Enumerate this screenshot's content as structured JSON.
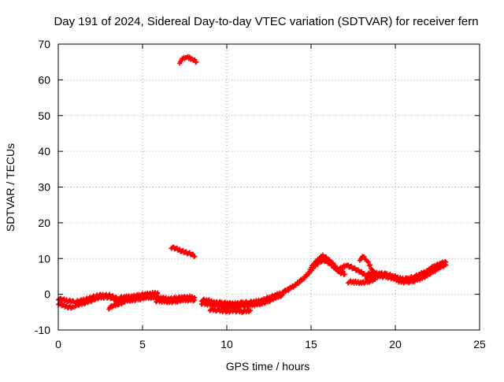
{
  "chart_data": {
    "type": "scatter",
    "title": "Day 191 of 2024, Sidereal Day-to-day VTEC variation (SDTVAR) for receiver fern",
    "xlabel": "GPS time / hours",
    "ylabel": "SDTVAR / TECUs",
    "xlim": [
      0,
      25
    ],
    "ylim": [
      -10,
      70
    ],
    "xticks": [
      0,
      5,
      10,
      15,
      20,
      25
    ],
    "yticks": [
      -10,
      0,
      10,
      20,
      30,
      40,
      50,
      60,
      70
    ],
    "grid": true,
    "marker": "plus",
    "color": "#ff0000",
    "series": [
      {
        "name": "SDTVAR",
        "segments": [
          [
            [
              0.0,
              -2.5
            ],
            [
              0.3,
              -3.2
            ],
            [
              0.6,
              -3.5
            ],
            [
              0.9,
              -3.6
            ]
          ],
          [
            [
              0.0,
              -1.2
            ],
            [
              0.3,
              -1.6
            ],
            [
              0.6,
              -1.8
            ],
            [
              0.9,
              -1.9
            ]
          ],
          [
            [
              1.0,
              -3.2
            ],
            [
              1.3,
              -2.8
            ],
            [
              1.6,
              -2.3
            ],
            [
              1.9,
              -1.8
            ],
            [
              2.2,
              -1.3
            ],
            [
              2.5,
              -0.9
            ],
            [
              2.8,
              -0.7
            ],
            [
              3.1,
              -0.9
            ],
            [
              3.4,
              -1.6
            ],
            [
              3.6,
              -2.5
            ]
          ],
          [
            [
              1.0,
              -2.2
            ],
            [
              1.3,
              -1.9
            ],
            [
              1.6,
              -1.4
            ],
            [
              1.9,
              -1.0
            ],
            [
              2.2,
              -0.6
            ],
            [
              2.5,
              -0.3
            ],
            [
              2.8,
              -0.2
            ],
            [
              3.1,
              -0.4
            ],
            [
              3.4,
              -1.0
            ],
            [
              3.6,
              -1.5
            ]
          ],
          [
            [
              3.0,
              -3.8
            ],
            [
              3.3,
              -3.2
            ],
            [
              3.6,
              -2.6
            ],
            [
              3.9,
              -2.2
            ]
          ],
          [
            [
              3.6,
              -2.0
            ],
            [
              4.0,
              -1.8
            ],
            [
              4.4,
              -1.6
            ],
            [
              4.8,
              -1.3
            ],
            [
              5.2,
              -1.0
            ],
            [
              5.6,
              -0.8
            ],
            [
              5.9,
              -0.6
            ]
          ],
          [
            [
              3.6,
              -1.0
            ],
            [
              4.0,
              -0.8
            ],
            [
              4.4,
              -0.5
            ],
            [
              4.8,
              -0.3
            ],
            [
              5.2,
              0.0
            ],
            [
              5.6,
              0.2
            ],
            [
              5.9,
              0.4
            ]
          ],
          [
            [
              5.8,
              -1.8
            ],
            [
              6.2,
              -1.9
            ],
            [
              6.6,
              -2.1
            ],
            [
              7.0,
              -1.9
            ],
            [
              7.4,
              -1.7
            ],
            [
              7.8,
              -1.5
            ],
            [
              8.1,
              -1.6
            ]
          ],
          [
            [
              5.8,
              -1.0
            ],
            [
              6.2,
              -1.1
            ],
            [
              6.6,
              -1.2
            ],
            [
              7.0,
              -1.1
            ],
            [
              7.4,
              -0.9
            ],
            [
              7.8,
              -0.8
            ],
            [
              8.1,
              -0.9
            ]
          ],
          [
            [
              8.5,
              -2.5
            ],
            [
              8.9,
              -2.8
            ],
            [
              9.3,
              -3.0
            ],
            [
              9.7,
              -3.3
            ],
            [
              10.1,
              -3.6
            ],
            [
              10.5,
              -3.5
            ],
            [
              10.9,
              -3.2
            ],
            [
              11.3,
              -3.1
            ],
            [
              11.7,
              -2.9
            ],
            [
              12.1,
              -2.5
            ],
            [
              12.5,
              -1.8
            ],
            [
              12.9,
              -1.0
            ],
            [
              13.3,
              -0.2
            ]
          ],
          [
            [
              8.5,
              -1.6
            ],
            [
              8.9,
              -1.8
            ],
            [
              9.3,
              -2.2
            ],
            [
              9.7,
              -2.4
            ],
            [
              10.1,
              -2.6
            ],
            [
              10.5,
              -2.6
            ],
            [
              10.9,
              -2.4
            ],
            [
              11.3,
              -2.3
            ],
            [
              11.7,
              -2.1
            ],
            [
              12.1,
              -1.6
            ],
            [
              12.5,
              -1.0
            ],
            [
              12.9,
              -0.3
            ],
            [
              13.3,
              0.5
            ]
          ],
          [
            [
              9.0,
              -4.2
            ],
            [
              9.5,
              -4.5
            ],
            [
              10.0,
              -4.7
            ],
            [
              10.5,
              -4.6
            ],
            [
              11.0,
              -4.8
            ],
            [
              11.4,
              -4.5
            ]
          ],
          [
            [
              13.3,
              0.5
            ],
            [
              13.7,
              1.5
            ],
            [
              14.1,
              2.8
            ],
            [
              14.5,
              4.2
            ],
            [
              14.9,
              6.0
            ],
            [
              15.2,
              7.8
            ],
            [
              15.5,
              9.2
            ],
            [
              15.8,
              9.5
            ],
            [
              16.1,
              8.6
            ],
            [
              16.4,
              7.5
            ],
            [
              16.7,
              6.2
            ],
            [
              17.0,
              5.6
            ]
          ],
          [
            [
              14.9,
              6.8
            ],
            [
              15.2,
              8.6
            ],
            [
              15.5,
              10.2
            ],
            [
              15.7,
              10.8
            ],
            [
              16.0,
              9.8
            ],
            [
              16.3,
              8.4
            ],
            [
              16.6,
              7.0
            ],
            [
              16.9,
              6.4
            ]
          ],
          [
            [
              16.6,
              6.8
            ],
            [
              16.9,
              7.6
            ],
            [
              17.1,
              8.2
            ],
            [
              17.4,
              7.6
            ],
            [
              17.7,
              6.8
            ],
            [
              18.0,
              6.0
            ],
            [
              18.3,
              5.3
            ]
          ],
          [
            [
              17.2,
              3.5
            ],
            [
              17.6,
              3.4
            ],
            [
              18.0,
              3.3
            ],
            [
              18.4,
              3.6
            ],
            [
              18.8,
              4.1
            ]
          ],
          [
            [
              17.9,
              9.8
            ],
            [
              18.1,
              10.4
            ],
            [
              18.3,
              9.6
            ],
            [
              18.5,
              8.0
            ],
            [
              18.7,
              6.2
            ],
            [
              18.9,
              5.2
            ]
          ],
          [
            [
              18.3,
              4.7
            ],
            [
              18.7,
              5.0
            ],
            [
              19.1,
              5.1
            ],
            [
              19.5,
              4.9
            ],
            [
              19.9,
              4.3
            ],
            [
              20.3,
              3.6
            ],
            [
              20.7,
              3.4
            ],
            [
              21.1,
              3.8
            ],
            [
              21.5,
              4.4
            ],
            [
              21.9,
              5.4
            ],
            [
              22.3,
              6.6
            ],
            [
              22.7,
              7.6
            ],
            [
              23.0,
              8.2
            ]
          ],
          [
            [
              18.3,
              5.6
            ],
            [
              18.7,
              5.9
            ],
            [
              19.1,
              5.9
            ],
            [
              19.5,
              5.6
            ],
            [
              19.9,
              5.0
            ],
            [
              20.3,
              4.4
            ],
            [
              20.7,
              4.3
            ],
            [
              21.1,
              4.8
            ],
            [
              21.5,
              5.6
            ],
            [
              21.9,
              6.6
            ],
            [
              22.3,
              7.8
            ],
            [
              22.7,
              8.6
            ],
            [
              23.0,
              9.0
            ]
          ],
          [
            [
              6.7,
              13.2
            ],
            [
              7.0,
              12.7
            ],
            [
              7.3,
              12.2
            ],
            [
              7.6,
              11.7
            ],
            [
              7.9,
              11.2
            ],
            [
              8.1,
              10.6
            ]
          ],
          [
            [
              7.2,
              65.0
            ],
            [
              7.4,
              65.8
            ],
            [
              7.6,
              66.4
            ],
            [
              7.8,
              66.2
            ],
            [
              8.0,
              65.6
            ],
            [
              8.2,
              65.0
            ]
          ]
        ]
      }
    ]
  }
}
